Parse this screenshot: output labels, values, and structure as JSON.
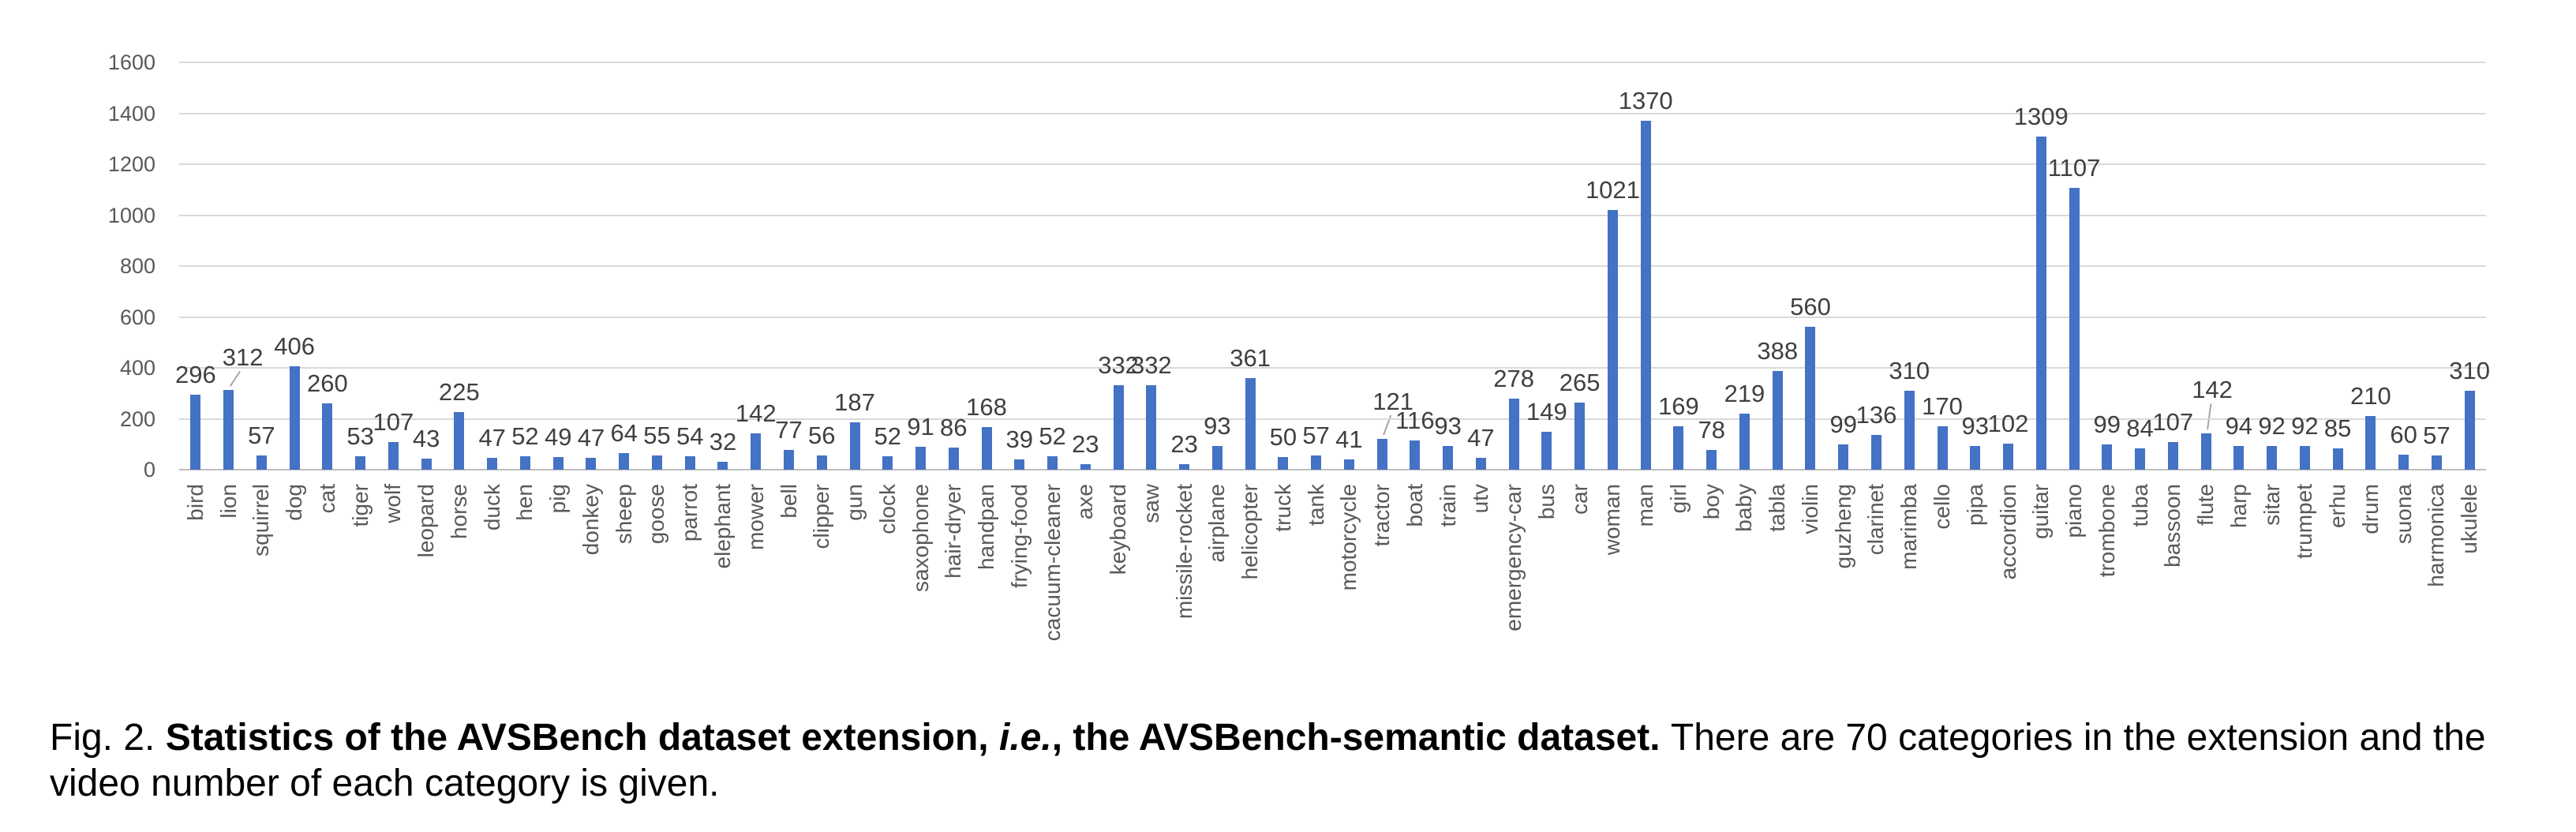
{
  "chart_data": {
    "type": "bar",
    "title": "",
    "xlabel": "",
    "ylabel": "",
    "ylim": [
      0,
      1600
    ],
    "ytick_interval": 200,
    "yticks": [
      0,
      200,
      400,
      600,
      800,
      1000,
      1200,
      1400,
      1600
    ],
    "grid": "horizontal",
    "legend": null,
    "bar_color": "#4472C4",
    "grid_color": "#D9D9D9",
    "axis_text_color": "#595959",
    "value_label_color": "#404040",
    "categories": [
      "bird",
      "lion",
      "squirrel",
      "dog",
      "cat",
      "tiger",
      "wolf",
      "leopard",
      "horse",
      "duck",
      "hen",
      "pig",
      "donkey",
      "sheep",
      "goose",
      "parrot",
      "elephant",
      "mower",
      "bell",
      "clipper",
      "gun",
      "clock",
      "saxophone",
      "hair-dryer",
      "handpan",
      "frying-food",
      "cacuum-cleaner",
      "axe",
      "keyboard",
      "saw",
      "missile-rocket",
      "airplane",
      "helicopter",
      "truck",
      "tank",
      "motorcycle",
      "tractor",
      "boat",
      "train",
      "utv",
      "emergency-car",
      "bus",
      "car",
      "woman",
      "man",
      "girl",
      "boy",
      "baby",
      "tabla",
      "violin",
      "guzheng",
      "clarinet",
      "marimba",
      "cello",
      "pipa",
      "accordion",
      "guitar",
      "piano",
      "trombone",
      "tuba",
      "bassoon",
      "flute",
      "harp",
      "sitar",
      "trumpet",
      "erhu",
      "drum",
      "suona",
      "harmonica",
      "ukulele"
    ],
    "values": [
      296,
      312,
      57,
      406,
      260,
      53,
      107,
      43,
      225,
      47,
      52,
      49,
      47,
      64,
      55,
      54,
      32,
      142,
      77,
      56,
      187,
      52,
      91,
      86,
      168,
      39,
      52,
      23,
      332,
      332,
      23,
      93,
      361,
      50,
      57,
      41,
      121,
      116,
      93,
      47,
      278,
      149,
      265,
      1021,
      1370,
      169,
      78,
      219,
      388,
      560,
      99,
      136,
      310,
      170,
      93,
      102,
      1309,
      1107,
      99,
      84,
      107,
      142,
      94,
      92,
      92,
      85,
      210,
      60,
      57,
      310
    ],
    "label_offsets": {
      "1": [
        18,
        -16
      ],
      "36": [
        14,
        -22
      ],
      "61": [
        8,
        -30
      ]
    },
    "leader_indices": [
      1,
      36,
      61
    ]
  },
  "figure": {
    "caption": {
      "lines": [
        [
          {
            "text": "Fig. 2. ",
            "bold": false,
            "italic": false
          },
          {
            "text": "Statistics of the AVSBench dataset extension, ",
            "bold": true,
            "italic": false
          },
          {
            "text": "i.e.",
            "bold": true,
            "italic": true
          },
          {
            "text": ", the AVSBench-semantic dataset. ",
            "bold": true,
            "italic": false
          },
          {
            "text": "There are 70 categories in the extension and the",
            "bold": false,
            "italic": false
          }
        ],
        [
          {
            "text": "video number of each category is given.",
            "bold": false,
            "italic": false
          }
        ]
      ]
    }
  }
}
